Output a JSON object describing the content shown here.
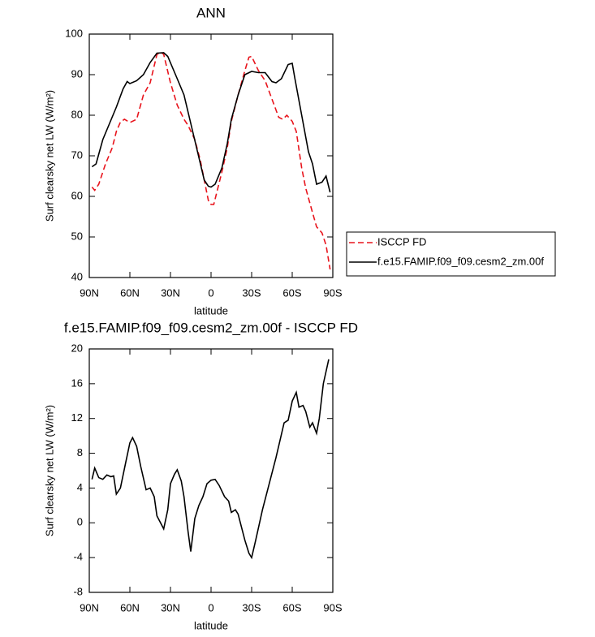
{
  "chart_data": [
    {
      "type": "line",
      "title": "ANN",
      "xlabel": "latitude",
      "ylabel": "Surf clearsky net LW (W/m²)",
      "xlim": [
        90,
        -90
      ],
      "xticks": [
        {
          "value": 90,
          "label": "90N"
        },
        {
          "value": 60,
          "label": "60N"
        },
        {
          "value": 30,
          "label": "30N"
        },
        0,
        {
          "value": -30,
          "label": "30S"
        },
        {
          "value": -60,
          "label": "60S"
        },
        {
          "value": -90,
          "label": "90S"
        }
      ],
      "ylim": [
        40,
        100
      ],
      "yticks": [
        40,
        50,
        60,
        70,
        80,
        90,
        100
      ],
      "legend": "right",
      "series": [
        {
          "name": "ISCCP FD",
          "color": "#e8141c",
          "line_style": "dashed",
          "x": [
            88,
            86,
            83,
            78,
            73,
            70,
            67,
            64,
            60,
            55,
            50,
            45,
            40,
            37,
            35,
            30,
            25,
            20,
            17,
            12,
            8,
            5,
            2,
            0,
            -2,
            -5,
            -8,
            -12,
            -15,
            -20,
            -25,
            -28,
            -30,
            -35,
            -40,
            -45,
            -50,
            -53,
            -56,
            -60,
            -63,
            -67,
            -70,
            -75,
            -78,
            -82,
            -85,
            -88
          ],
          "values": [
            62.3,
            61.5,
            63,
            68,
            72,
            76,
            78.3,
            79,
            78.2,
            79,
            85,
            88,
            95,
            95.5,
            95,
            88,
            82.5,
            79,
            77.5,
            74,
            69,
            64,
            59,
            58,
            58,
            62,
            66,
            72,
            78.5,
            85,
            91,
            94.3,
            94.5,
            91,
            88.5,
            84,
            79.5,
            79,
            80,
            78.5,
            76,
            67,
            62,
            56,
            52.5,
            51,
            48,
            42
          ]
        },
        {
          "name": "f.e15.FAMIP.f09_f09.cesm2_zm.00f",
          "color": "#000000",
          "line_style": "solid",
          "x": [
            88,
            85,
            80,
            75,
            70,
            65,
            62,
            60,
            55,
            50,
            45,
            40,
            35,
            32,
            25,
            20,
            15,
            10,
            5,
            2,
            0,
            -3,
            -8,
            -12,
            -15,
            -20,
            -25,
            -30,
            -35,
            -40,
            -45,
            -48,
            -52,
            -57,
            -60,
            -62,
            -67,
            -72,
            -75,
            -78,
            -82,
            -85,
            -88
          ],
          "values": [
            67.3,
            68,
            74,
            78,
            82,
            86.5,
            88.3,
            87.8,
            88.5,
            90,
            93,
            95.3,
            95.4,
            94.5,
            89,
            85,
            78,
            71,
            64,
            62.5,
            62.3,
            63,
            67,
            73,
            79,
            85,
            90,
            90.8,
            90.5,
            90.5,
            88.3,
            88,
            89,
            92.5,
            92.8,
            89,
            80,
            71,
            68,
            63,
            63.5,
            65,
            61
          ]
        }
      ]
    },
    {
      "type": "line",
      "title": "f.e15.FAMIP.f09_f09.cesm2_zm.00f - ISCCP FD",
      "xlabel": "latitude",
      "ylabel": "Surf clearsky net LW (W/m²)",
      "xlim": [
        90,
        -90
      ],
      "xticks": [
        {
          "value": 90,
          "label": "90N"
        },
        {
          "value": 60,
          "label": "60N"
        },
        {
          "value": 30,
          "label": "30N"
        },
        0,
        {
          "value": -30,
          "label": "30S"
        },
        {
          "value": -60,
          "label": "60S"
        },
        {
          "value": -90,
          "label": "90S"
        }
      ],
      "ylim": [
        -8,
        20
      ],
      "yticks": [
        -8,
        -4,
        0,
        4,
        8,
        12,
        16,
        20
      ],
      "color": "#000000",
      "x": [
        88,
        86,
        83,
        80,
        77,
        74,
        72,
        70,
        67,
        63,
        60,
        58,
        55,
        52,
        48,
        45,
        42,
        40,
        35,
        32,
        30,
        27,
        25,
        22,
        20,
        17,
        15,
        12,
        9,
        6,
        3,
        0,
        -3,
        -6,
        -10,
        -13,
        -15,
        -18,
        -20,
        -25,
        -28,
        -30,
        -33,
        -38,
        -43,
        -48,
        -54,
        -57,
        -60,
        -63,
        -65,
        -68,
        -70,
        -73,
        -75,
        -78,
        -80,
        -83,
        -87
      ],
      "values": [
        5,
        6.3,
        5.2,
        5,
        5.5,
        5.3,
        5.4,
        3.3,
        4,
        7,
        9.2,
        9.8,
        8.8,
        6.5,
        3.8,
        4,
        3,
        0.8,
        -0.7,
        1.5,
        4.5,
        5.6,
        6.1,
        4.8,
        3,
        -1,
        -3.3,
        0.5,
        2,
        3,
        4.5,
        4.9,
        5,
        4.3,
        3,
        2.5,
        1.2,
        1.5,
        1,
        -2,
        -3.5,
        -4,
        -2,
        1.5,
        4.5,
        7.5,
        11.5,
        11.8,
        14,
        15,
        13.3,
        13.5,
        12.8,
        11,
        11.5,
        10.3,
        12,
        16,
        18.8
      ]
    }
  ]
}
